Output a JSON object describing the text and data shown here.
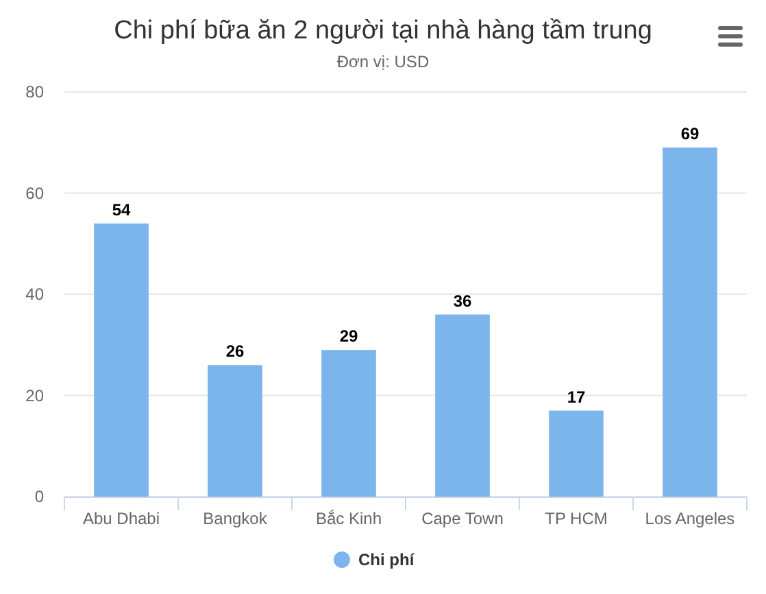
{
  "chart_data": {
    "type": "bar",
    "title": "Chi phí bữa ăn 2 người tại nhà hàng tầm trung",
    "subtitle": "Đơn vị: USD",
    "categories": [
      "Abu Dhabi",
      "Bangkok",
      "Bắc Kinh",
      "Cape Town",
      "TP HCM",
      "Los Angeles"
    ],
    "series": [
      {
        "name": "Chi phí",
        "color": "#7cb5ec",
        "values": [
          54,
          26,
          29,
          36,
          17,
          69
        ]
      }
    ],
    "ylim": [
      0,
      80
    ],
    "yticks": [
      0,
      20,
      40,
      60,
      80
    ],
    "grid": "y",
    "legend": "bottom",
    "data_labels": true
  }
}
